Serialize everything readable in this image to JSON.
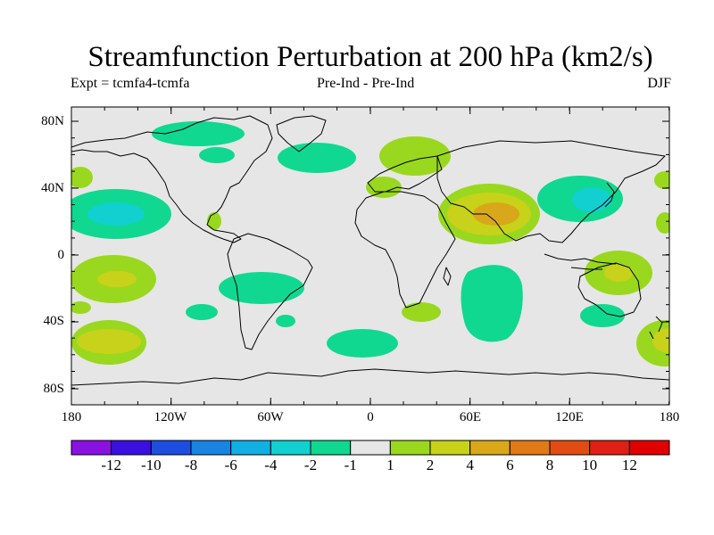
{
  "title": "Streamfunction Perturbation at 200 hPa (km2/s)",
  "subtitle_left": "Expt = tcmfa4-tcmfa",
  "subtitle_center": "Pre-Ind - Pre-Ind",
  "subtitle_right": "DJF",
  "lat_labels": [
    "80N",
    "40N",
    "0",
    "40S",
    "80S"
  ],
  "lon_labels": [
    "180",
    "120W",
    "60W",
    "0",
    "60E",
    "120E",
    "180"
  ],
  "colorbar": {
    "labels": [
      "-12",
      "-10",
      "-8",
      "-6",
      "-4",
      "-2",
      "-1",
      "1",
      "2",
      "4",
      "6",
      "8",
      "10",
      "12"
    ],
    "colors": [
      "#8a12e0",
      "#3a10e0",
      "#1e4ee0",
      "#1a84e0",
      "#12b0e2",
      "#12cfd0",
      "#10d890",
      "#e6e6e6",
      "#99d81e",
      "#c8d21a",
      "#d8a81a",
      "#e07a16",
      "#e04c14",
      "#e02014",
      "#e00000"
    ]
  },
  "colors": {
    "background_field": "#e6e6e6",
    "coastline": "#000000"
  }
}
